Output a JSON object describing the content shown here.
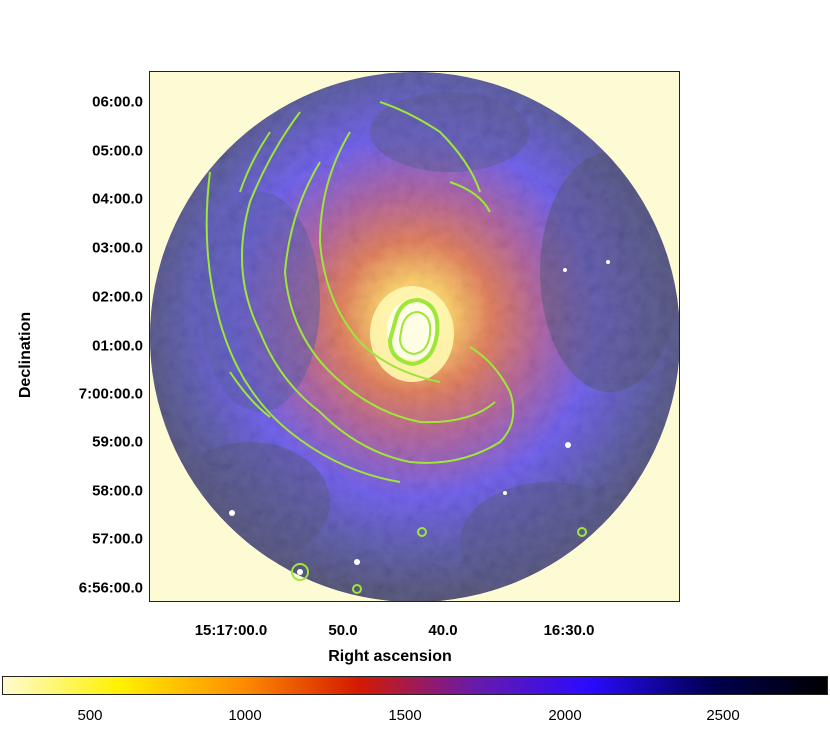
{
  "figure": {
    "x_axis_title": "Right ascension",
    "y_axis_title": "Declination",
    "y_ticks": [
      "06:00.0",
      "05:00.0",
      "04:00.0",
      "03:00.0",
      "02:00.0",
      "01:00.0",
      "7:00:00.0",
      "59:00.0",
      "58:00.0",
      "57:00.0",
      "6:56:00.0"
    ],
    "x_ticks": [
      "15:17:00.0",
      "50.0",
      "40.0",
      "16:30.0"
    ],
    "colorbar_ticks": [
      "500",
      "1000",
      "1500",
      "2000",
      "2500"
    ],
    "colors": {
      "background": "#fdfbd3",
      "contour": "#9ee63a",
      "colormap": [
        "#fffbd0",
        "#fff200",
        "#ff8c00",
        "#d41a00",
        "#6a1aa8",
        "#2b0bff",
        "#000050",
        "#000000"
      ]
    }
  }
}
